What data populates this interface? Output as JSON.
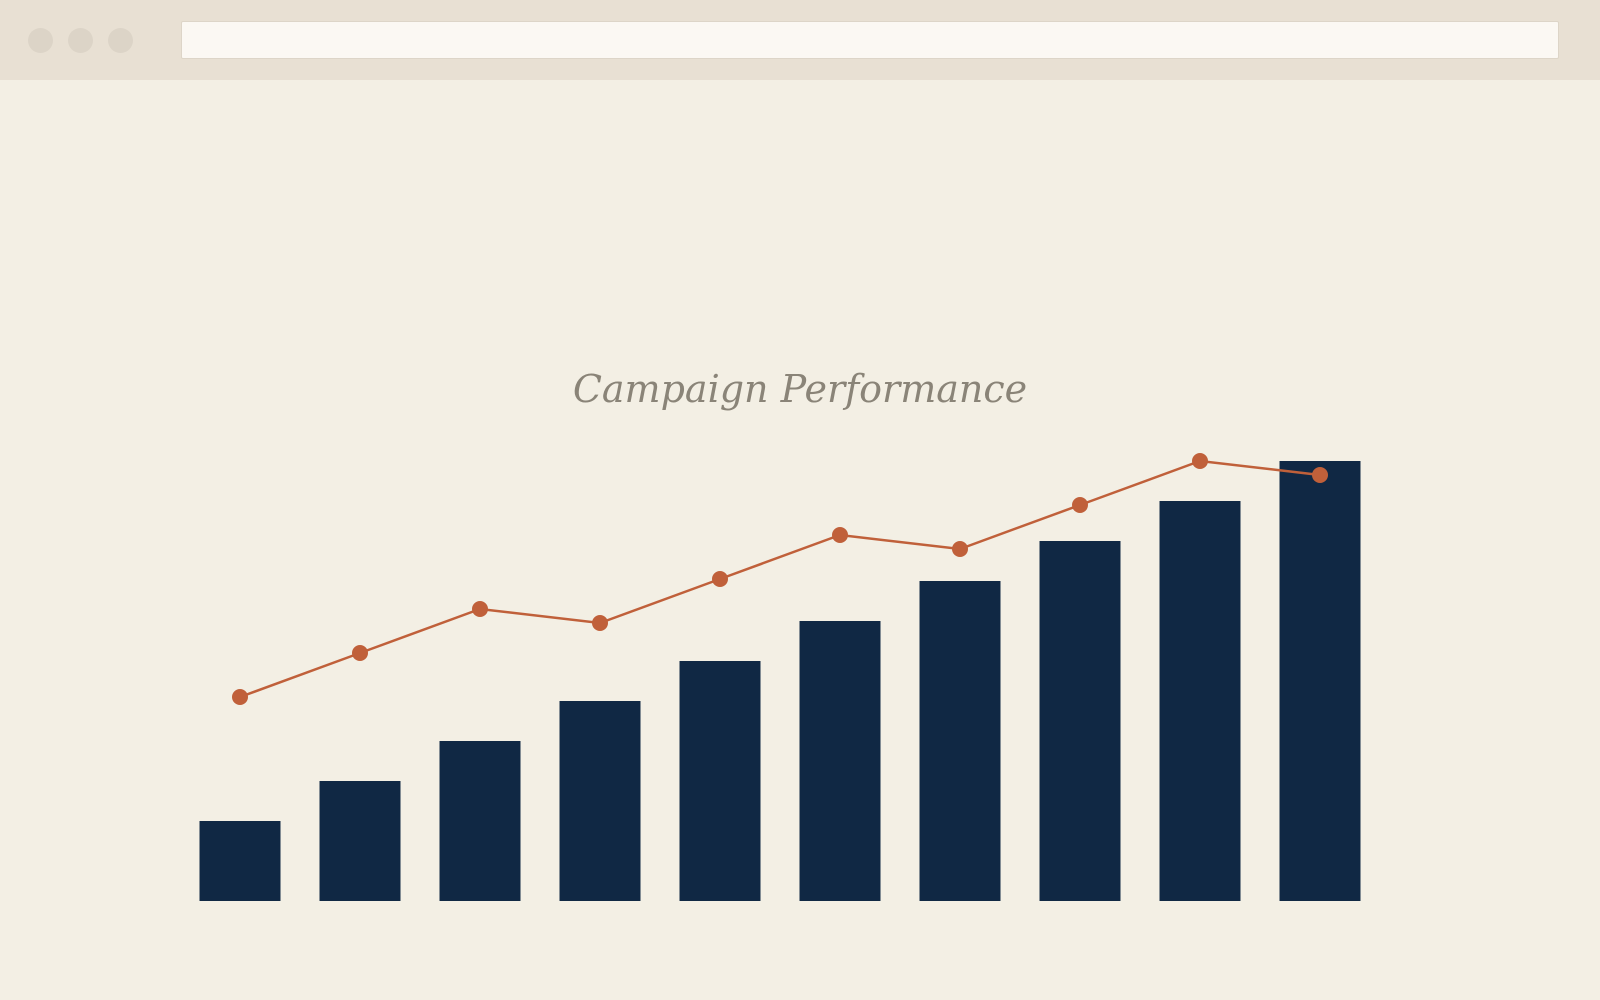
{
  "window": {
    "controls": [
      "close",
      "minimize",
      "maximize"
    ],
    "url": ""
  },
  "colors": {
    "bar": "#102844",
    "line": "#c0603a",
    "title": "#8a8478",
    "background": "#f3efe4"
  },
  "chart_data": {
    "type": "bar",
    "title": "Campaign Performance",
    "xlabel": "",
    "ylabel": "",
    "categories": [
      "",
      "",
      "",
      "",
      "",
      "",
      "",
      "",
      "",
      ""
    ],
    "ylim": [
      0,
      12
    ],
    "grid": false,
    "legend": "none",
    "series": [
      {
        "type": "bar",
        "values": [
          2,
          3,
          4,
          5,
          6,
          7,
          8,
          9,
          10,
          11
        ]
      },
      {
        "type": "line",
        "values": [
          5.1,
          6.2,
          7.3,
          6.95,
          8.05,
          9.15,
          8.8,
          9.9,
          11.0,
          10.65
        ]
      }
    ]
  }
}
